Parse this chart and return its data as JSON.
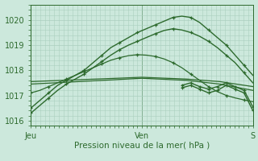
{
  "bg_color": "#cce8dc",
  "grid_color": "#aacfbf",
  "line_color": "#2d6a2d",
  "axis_label": "Pression niveau de la mer( hPa )",
  "x_ticks_pos": [
    0,
    0.5,
    1.0
  ],
  "x_tick_labels": [
    "Jeu",
    "Ven",
    "S"
  ],
  "ylim": [
    1015.8,
    1020.5
  ],
  "yticks": [
    1016,
    1017,
    1018,
    1019,
    1020
  ],
  "marker": "+",
  "series": [
    {
      "x": [
        0.0,
        0.04,
        0.08,
        0.12,
        0.16,
        0.2,
        0.24,
        0.28,
        0.32,
        0.36,
        0.4,
        0.44,
        0.48,
        0.52,
        0.56,
        0.6,
        0.64,
        0.68,
        0.72,
        0.76,
        0.8,
        0.84,
        0.88,
        0.92,
        0.96,
        1.0
      ],
      "y": [
        1016.5,
        1016.8,
        1017.1,
        1017.4,
        1017.6,
        1017.8,
        1018.0,
        1018.3,
        1018.6,
        1018.9,
        1019.1,
        1019.3,
        1019.5,
        1019.65,
        1019.8,
        1019.95,
        1020.1,
        1020.15,
        1020.1,
        1019.9,
        1019.6,
        1019.3,
        1019.0,
        1018.6,
        1018.2,
        1017.8
      ],
      "has_marker": true,
      "lw": 1.0
    },
    {
      "x": [
        0.0,
        0.04,
        0.08,
        0.12,
        0.16,
        0.2,
        0.24,
        0.28,
        0.32,
        0.36,
        0.4,
        0.44,
        0.48,
        0.52,
        0.56,
        0.6,
        0.64,
        0.68,
        0.72,
        0.76,
        0.8,
        0.84,
        0.88,
        0.92,
        0.96,
        1.0
      ],
      "y": [
        1016.3,
        1016.6,
        1016.9,
        1017.2,
        1017.45,
        1017.65,
        1017.85,
        1018.1,
        1018.35,
        1018.6,
        1018.82,
        1019.0,
        1019.15,
        1019.3,
        1019.45,
        1019.58,
        1019.65,
        1019.6,
        1019.5,
        1019.35,
        1019.15,
        1018.9,
        1018.6,
        1018.3,
        1017.9,
        1017.5
      ],
      "has_marker": true,
      "lw": 1.0
    },
    {
      "x": [
        0.0,
        0.5,
        0.7,
        0.85,
        1.0
      ],
      "y": [
        1017.55,
        1017.72,
        1017.65,
        1017.55,
        1017.35
      ],
      "has_marker": false,
      "lw": 0.9
    },
    {
      "x": [
        0.0,
        0.5,
        0.7,
        0.85,
        1.0
      ],
      "y": [
        1017.45,
        1017.68,
        1017.6,
        1017.45,
        1017.2
      ],
      "has_marker": false,
      "lw": 0.9
    },
    {
      "x": [
        0.0,
        0.04,
        0.08,
        0.12,
        0.16,
        0.2,
        0.24,
        0.28,
        0.32,
        0.36,
        0.4,
        0.44,
        0.48,
        0.52,
        0.56,
        0.6,
        0.64,
        0.68,
        0.72,
        0.76,
        0.8,
        0.84,
        0.88,
        0.92,
        0.96,
        1.0
      ],
      "y": [
        1017.1,
        1017.2,
        1017.35,
        1017.5,
        1017.65,
        1017.8,
        1017.95,
        1018.1,
        1018.25,
        1018.4,
        1018.5,
        1018.58,
        1018.62,
        1018.6,
        1018.55,
        1018.45,
        1018.3,
        1018.1,
        1017.85,
        1017.6,
        1017.35,
        1017.15,
        1017.0,
        1016.9,
        1016.82,
        1016.75
      ],
      "has_marker": true,
      "lw": 0.9
    }
  ],
  "right_series": [
    {
      "x": [
        0.68,
        0.72,
        0.76,
        0.8,
        0.84,
        0.88,
        0.92,
        0.96,
        1.0
      ],
      "y": [
        1017.4,
        1017.5,
        1017.35,
        1017.25,
        1017.35,
        1017.5,
        1017.35,
        1017.2,
        1016.55
      ],
      "has_marker": true,
      "lw": 1.0
    },
    {
      "x": [
        0.68,
        0.72,
        0.76,
        0.8,
        0.84,
        0.88,
        0.92,
        0.96,
        1.0
      ],
      "y": [
        1017.3,
        1017.4,
        1017.25,
        1017.1,
        1017.2,
        1017.4,
        1017.25,
        1017.1,
        1016.4
      ],
      "has_marker": true,
      "lw": 1.0
    }
  ]
}
